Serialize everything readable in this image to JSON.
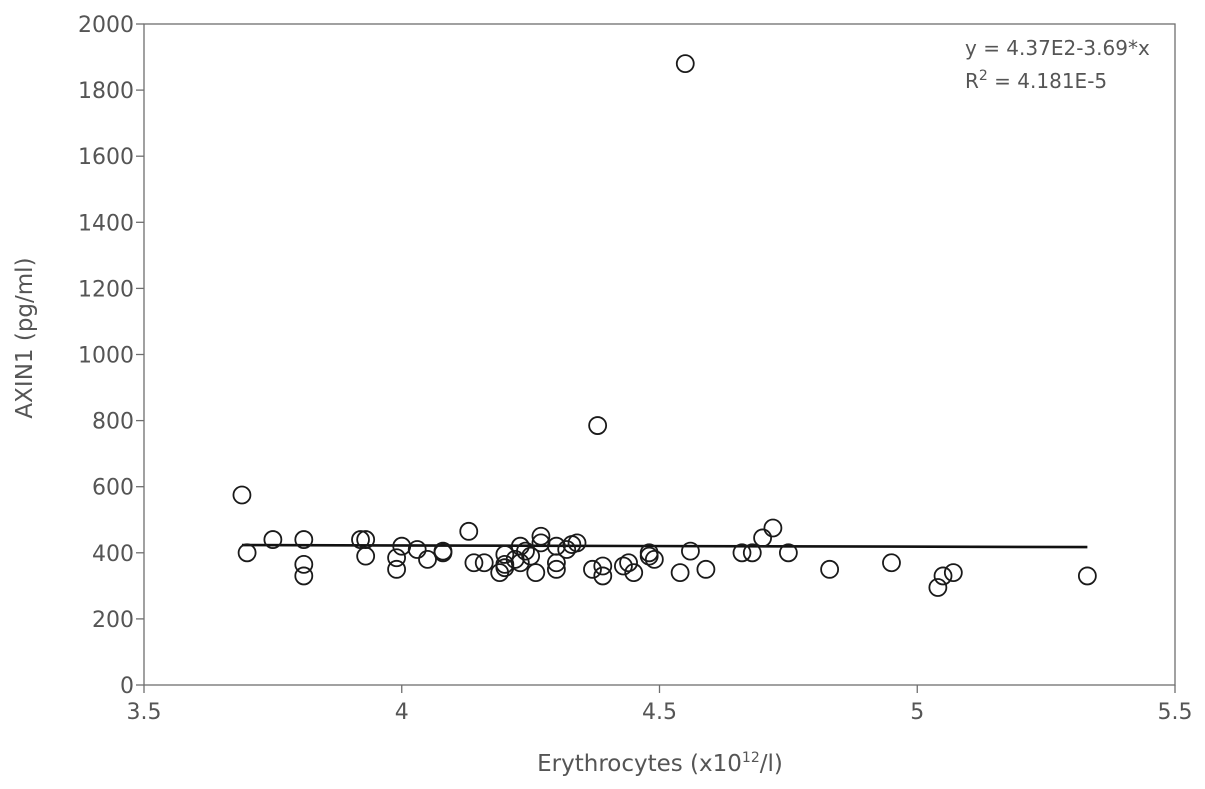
{
  "chart_data": {
    "type": "scatter",
    "title": "",
    "xlabel": "Erythrocytes (x10",
    "xlabel_sup": "12",
    "xlabel_tail": "/l)",
    "ylabel": "AXIN1 (pg/ml)",
    "xlim": [
      3.5,
      5.5
    ],
    "ylim": [
      0,
      2000
    ],
    "xticks": [
      3.5,
      4,
      4.5,
      5,
      5.5
    ],
    "xtick_labels": [
      "3.5",
      "4",
      "4.5",
      "5",
      "5.5"
    ],
    "yticks": [
      0,
      200,
      400,
      600,
      800,
      1000,
      1200,
      1400,
      1600,
      1800,
      2000
    ],
    "ytick_labels": [
      "0",
      "200",
      "400",
      "600",
      "800",
      "1000",
      "1200",
      "1400",
      "1600",
      "1800",
      "2000"
    ],
    "grid": false,
    "annotations": {
      "equation": "y = 4.37E2-3.69*x",
      "r2_label": "R",
      "r2_sup": "2",
      "r2_value": " = 4.181E-5"
    },
    "trendline": {
      "intercept": 437,
      "slope": -3.69,
      "x_from": 3.69,
      "x_to": 5.33
    },
    "points": [
      {
        "x": 3.69,
        "y": 575
      },
      {
        "x": 3.7,
        "y": 400
      },
      {
        "x": 3.75,
        "y": 440
      },
      {
        "x": 3.81,
        "y": 440
      },
      {
        "x": 3.81,
        "y": 365
      },
      {
        "x": 3.81,
        "y": 330
      },
      {
        "x": 3.92,
        "y": 440
      },
      {
        "x": 3.93,
        "y": 440
      },
      {
        "x": 3.93,
        "y": 390
      },
      {
        "x": 3.99,
        "y": 385
      },
      {
        "x": 3.99,
        "y": 350
      },
      {
        "x": 4.0,
        "y": 420
      },
      {
        "x": 4.03,
        "y": 410
      },
      {
        "x": 4.05,
        "y": 380
      },
      {
        "x": 4.08,
        "y": 405
      },
      {
        "x": 4.08,
        "y": 400
      },
      {
        "x": 4.13,
        "y": 465
      },
      {
        "x": 4.14,
        "y": 370
      },
      {
        "x": 4.16,
        "y": 370
      },
      {
        "x": 4.19,
        "y": 340
      },
      {
        "x": 4.2,
        "y": 395
      },
      {
        "x": 4.2,
        "y": 365
      },
      {
        "x": 4.2,
        "y": 355
      },
      {
        "x": 4.22,
        "y": 380
      },
      {
        "x": 4.23,
        "y": 420
      },
      {
        "x": 4.23,
        "y": 370
      },
      {
        "x": 4.24,
        "y": 405
      },
      {
        "x": 4.25,
        "y": 390
      },
      {
        "x": 4.26,
        "y": 340
      },
      {
        "x": 4.27,
        "y": 450
      },
      {
        "x": 4.27,
        "y": 430
      },
      {
        "x": 4.3,
        "y": 420
      },
      {
        "x": 4.3,
        "y": 370
      },
      {
        "x": 4.3,
        "y": 350
      },
      {
        "x": 4.32,
        "y": 410
      },
      {
        "x": 4.33,
        "y": 425
      },
      {
        "x": 4.34,
        "y": 430
      },
      {
        "x": 4.37,
        "y": 350
      },
      {
        "x": 4.38,
        "y": 785
      },
      {
        "x": 4.39,
        "y": 360
      },
      {
        "x": 4.39,
        "y": 330
      },
      {
        "x": 4.43,
        "y": 360
      },
      {
        "x": 4.44,
        "y": 370
      },
      {
        "x": 4.45,
        "y": 340
      },
      {
        "x": 4.48,
        "y": 400
      },
      {
        "x": 4.48,
        "y": 390
      },
      {
        "x": 4.49,
        "y": 380
      },
      {
        "x": 4.54,
        "y": 340
      },
      {
        "x": 4.55,
        "y": 1880
      },
      {
        "x": 4.56,
        "y": 405
      },
      {
        "x": 4.59,
        "y": 350
      },
      {
        "x": 4.66,
        "y": 400
      },
      {
        "x": 4.68,
        "y": 400
      },
      {
        "x": 4.7,
        "y": 445
      },
      {
        "x": 4.72,
        "y": 475
      },
      {
        "x": 4.75,
        "y": 400
      },
      {
        "x": 4.83,
        "y": 350
      },
      {
        "x": 4.95,
        "y": 370
      },
      {
        "x": 5.04,
        "y": 295
      },
      {
        "x": 5.05,
        "y": 330
      },
      {
        "x": 5.07,
        "y": 340
      },
      {
        "x": 5.33,
        "y": 330
      }
    ]
  }
}
